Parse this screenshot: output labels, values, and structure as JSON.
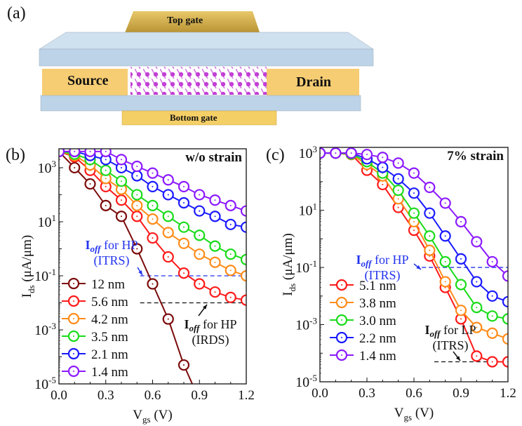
{
  "panel_a": {
    "label": "(a)",
    "top_gate": "Top gate",
    "bottom_gate": "Bottom gate",
    "source": "Source",
    "drain": "Drain"
  },
  "chart_data": [
    {
      "type": "line",
      "panel": "(b)",
      "title": "w/o strain",
      "xlabel": "V_gs (V)",
      "ylabel": "I_ds (μA/μm)",
      "xlim": [
        0.0,
        1.2
      ],
      "ylim_log10": [
        -5,
        3.7
      ],
      "yscale": "log",
      "xticks": [
        "0.0",
        "0.3",
        "0.6",
        "0.9",
        "1.2"
      ],
      "yticks": [
        "10^3",
        "10^1",
        "10^-1",
        "10^-3",
        "10^-5"
      ],
      "legend_position": "lower-left",
      "x": [
        0.0,
        0.1,
        0.2,
        0.3,
        0.4,
        0.5,
        0.6,
        0.7,
        0.8,
        0.9,
        1.0,
        1.1,
        1.2
      ],
      "series": [
        {
          "name": "12 nm",
          "color": "#7b0a0a",
          "log10_values": [
            3.6,
            3.0,
            2.4,
            1.6,
            1.2,
            0.0,
            -1.3,
            -2.6,
            -4.3,
            -5.6,
            null,
            null,
            null
          ]
        },
        {
          "name": "5.6 nm",
          "color": "#ff1a1a",
          "log10_values": [
            3.6,
            3.4,
            2.9,
            2.3,
            1.8,
            1.2,
            0.4,
            -0.3,
            -0.9,
            -1.3,
            -1.6,
            -1.8,
            -1.9
          ]
        },
        {
          "name": "4.2 nm",
          "color": "#ff8c1a",
          "log10_values": [
            3.6,
            3.45,
            3.1,
            2.6,
            2.2,
            1.6,
            1.1,
            0.6,
            0.2,
            -0.2,
            -0.5,
            -0.8,
            -1.0
          ]
        },
        {
          "name": "3.5 nm",
          "color": "#1adb1a",
          "log10_values": [
            3.6,
            3.5,
            3.3,
            2.9,
            2.5,
            2.0,
            1.6,
            1.2,
            0.8,
            0.5,
            0.1,
            -0.2,
            -0.4
          ]
        },
        {
          "name": "2.1 nm",
          "color": "#1a1aff",
          "log10_values": [
            3.6,
            3.6,
            3.45,
            3.3,
            3.0,
            2.7,
            2.3,
            2.0,
            1.7,
            1.4,
            1.2,
            0.9,
            0.8
          ]
        },
        {
          "name": "1.4 nm",
          "color": "#8c1aff",
          "log10_values": [
            3.6,
            3.6,
            3.6,
            3.6,
            3.3,
            3.05,
            2.8,
            2.55,
            2.3,
            2.0,
            1.8,
            1.6,
            1.4
          ]
        }
      ],
      "reference_lines": [
        {
          "label": "I_off for HP (ITRS)",
          "log10_value": -1,
          "x_range": [
            0.52,
            1.2
          ],
          "color": "#2233ee"
        },
        {
          "label": "I_off for HP (IRDS)",
          "log10_value": -2,
          "x_range": [
            0.52,
            1.2
          ],
          "color": "#111111"
        }
      ],
      "annotations": {
        "itrs_main": "I",
        "itrs_sub": "off",
        "itrs_rest": " for HP",
        "itrs_src": "(ITRS)",
        "irds_main": "I",
        "irds_sub": "off",
        "irds_rest": " for HP",
        "irds_src": "(IRDS)"
      }
    },
    {
      "type": "line",
      "panel": "(c)",
      "title": "7% strain",
      "xlabel": "V_gs (V)",
      "ylabel": "I_ds (μA/μm)",
      "xlim": [
        0.0,
        1.2
      ],
      "ylim_log10": [
        -5,
        3.2
      ],
      "yscale": "log",
      "xticks": [
        "0.0",
        "0.3",
        "0.6",
        "0.9",
        "1.2"
      ],
      "yticks": [
        "10^3",
        "10^1",
        "10^-1",
        "10^-3",
        "10^-5"
      ],
      "legend_position": "lower-left",
      "x": [
        0.0,
        0.1,
        0.2,
        0.3,
        0.4,
        0.5,
        0.6,
        0.7,
        0.8,
        0.9,
        1.0,
        1.1,
        1.2
      ],
      "series": [
        {
          "name": "5.1 nm",
          "color": "#ff1a1a",
          "log10_values": [
            3.0,
            3.0,
            2.95,
            2.4,
            1.9,
            1.1,
            0.3,
            -0.6,
            -1.7,
            -2.8,
            -4.1,
            -4.3,
            -4.3
          ]
        },
        {
          "name": "3.8 nm",
          "color": "#ff8c1a",
          "log10_values": [
            3.0,
            3.0,
            2.95,
            2.6,
            2.2,
            1.4,
            0.6,
            -0.4,
            -1.5,
            -2.5,
            -3.1,
            -3.3,
            -3.5
          ]
        },
        {
          "name": "3.0 nm",
          "color": "#1adb1a",
          "log10_values": [
            3.0,
            3.0,
            2.97,
            2.7,
            2.3,
            1.7,
            0.9,
            0.1,
            -0.8,
            -1.6,
            -2.4,
            -2.7,
            -2.8
          ]
        },
        {
          "name": "2.2 nm",
          "color": "#1a1aff",
          "log10_values": [
            3.0,
            3.0,
            3.0,
            2.8,
            2.5,
            2.1,
            1.6,
            0.9,
            0.1,
            -0.7,
            -1.5,
            -2.0,
            -2.2
          ]
        },
        {
          "name": "1.4 nm",
          "color": "#8c1aff",
          "log10_values": [
            3.0,
            3.0,
            3.0,
            2.95,
            2.85,
            2.65,
            2.3,
            1.8,
            1.25,
            0.6,
            -0.1,
            -0.8,
            -1.3
          ]
        }
      ],
      "reference_lines": [
        {
          "label": "I_off for HP (ITRS)",
          "log10_value": -1,
          "x_range": [
            0.65,
            1.2
          ],
          "color": "#2233ee"
        },
        {
          "label": "I_off for LP (ITRS)",
          "log10_value": -4.3,
          "x_range": [
            0.73,
            1.2
          ],
          "color": "#111111"
        }
      ],
      "annotations": {
        "itrs_main": "I",
        "itrs_sub": "off",
        "itrs_rest": " for HP",
        "itrs_src": "(ITRS)",
        "lp_main": "I",
        "lp_sub": "off",
        "lp_rest": " for LP",
        "lp_src": "(ITRS)"
      }
    }
  ],
  "labels": {
    "b": "(b)",
    "c": "(c)"
  }
}
